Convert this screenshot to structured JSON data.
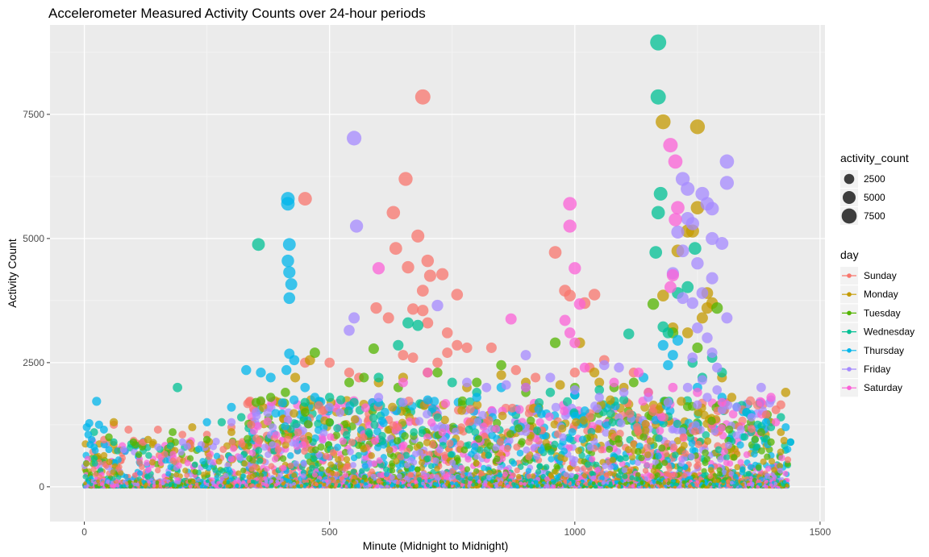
{
  "chart_data": {
    "type": "scatter",
    "title": "Accelerometer Measured Activity Counts over 24-hour periods",
    "xlabel": "Minute (Midnight to Midnight)",
    "ylabel": "Activity Count",
    "xlim": [
      -70,
      1510
    ],
    "ylim": [
      -700,
      9300
    ],
    "x_ticks": [
      0,
      500,
      1000,
      1500
    ],
    "x_tick_labels": [
      "0",
      "500",
      "1000",
      "1500"
    ],
    "y_ticks": [
      0,
      2500,
      5000,
      7500
    ],
    "y_tick_labels": [
      "0",
      "2500",
      "5000",
      "7500"
    ],
    "grid": true,
    "legend_position": "right",
    "size_legend": {
      "title": "activity_count",
      "entries": [
        {
          "label": "2500",
          "value": 2500
        },
        {
          "label": "5000",
          "value": 5000
        },
        {
          "label": "7500",
          "value": 7500
        }
      ]
    },
    "color_legend": {
      "title": "day",
      "entries": [
        {
          "label": "Sunday",
          "color": "#F8766D"
        },
        {
          "label": "Monday",
          "color": "#C49A00"
        },
        {
          "label": "Tuesday",
          "color": "#53B400"
        },
        {
          "label": "Wednesday",
          "color": "#00C094"
        },
        {
          "label": "Thursday",
          "color": "#00B6EB"
        },
        {
          "label": "Friday",
          "color": "#A58AFF"
        },
        {
          "label": "Saturday",
          "color": "#FB61D7"
        }
      ]
    },
    "series": [
      {
        "name": "Sunday",
        "color": "#F8766D",
        "points": [
          [
            450,
            5800
          ],
          [
            690,
            7850
          ],
          [
            655,
            6200
          ],
          [
            630,
            5520
          ],
          [
            680,
            5050
          ],
          [
            635,
            4800
          ],
          [
            660,
            4420
          ],
          [
            700,
            4550
          ],
          [
            705,
            4250
          ],
          [
            730,
            4280
          ],
          [
            690,
            3950
          ],
          [
            595,
            3600
          ],
          [
            670,
            3580
          ],
          [
            690,
            3550
          ],
          [
            760,
            3870
          ],
          [
            620,
            3400
          ],
          [
            700,
            3300
          ],
          [
            740,
            3100
          ],
          [
            760,
            2850
          ],
          [
            780,
            2800
          ],
          [
            830,
            2800
          ],
          [
            740,
            2700
          ],
          [
            650,
            2650
          ],
          [
            670,
            2600
          ],
          [
            720,
            2500
          ],
          [
            960,
            4720
          ],
          [
            980,
            3950
          ],
          [
            990,
            3850
          ],
          [
            1040,
            3870
          ],
          [
            1020,
            3700
          ],
          [
            1060,
            2550
          ],
          [
            1030,
            2400
          ],
          [
            1000,
            2300
          ],
          [
            60,
            1250
          ],
          [
            90,
            1150
          ],
          [
            150,
            1150
          ],
          [
            200,
            1050
          ],
          [
            250,
            1050
          ],
          [
            120,
            900
          ],
          [
            40,
            950
          ],
          [
            300,
            1200
          ],
          [
            340,
            1250
          ],
          [
            1420,
            1650
          ],
          [
            1410,
            1550
          ],
          [
            1390,
            1450
          ],
          [
            500,
            2500
          ],
          [
            450,
            2500
          ],
          [
            540,
            2300
          ],
          [
            560,
            2200
          ],
          [
            880,
            2350
          ],
          [
            920,
            2200
          ],
          [
            1120,
            2300
          ]
        ]
      },
      {
        "name": "Monday",
        "color": "#C49A00",
        "points": [
          [
            1180,
            7350
          ],
          [
            1250,
            7250
          ],
          [
            1250,
            5620
          ],
          [
            1240,
            5150
          ],
          [
            1230,
            5150
          ],
          [
            1210,
            4750
          ],
          [
            1270,
            3900
          ],
          [
            1280,
            3700
          ],
          [
            1270,
            3600
          ],
          [
            1180,
            3850
          ],
          [
            1260,
            3400
          ],
          [
            1200,
            3200
          ],
          [
            1230,
            3100
          ],
          [
            1010,
            2900
          ],
          [
            1040,
            2300
          ],
          [
            850,
            2250
          ],
          [
            700,
            2300
          ],
          [
            650,
            2200
          ],
          [
            600,
            2100
          ],
          [
            460,
            2550
          ],
          [
            430,
            2200
          ],
          [
            1430,
            1900
          ],
          [
            1400,
            1300
          ],
          [
            1420,
            1100
          ],
          [
            60,
            1300
          ],
          [
            220,
            1200
          ],
          [
            130,
            950
          ],
          [
            300,
            1100
          ],
          [
            900,
            2100
          ],
          [
            780,
            2000
          ],
          [
            1050,
            2100
          ],
          [
            1100,
            2000
          ],
          [
            1300,
            2200
          ],
          [
            1320,
            1800
          ],
          [
            1150,
            1900
          ],
          [
            970,
            2050
          ]
        ]
      },
      {
        "name": "Tuesday",
        "color": "#53B400",
        "points": [
          [
            470,
            2700
          ],
          [
            570,
            2200
          ],
          [
            590,
            2780
          ],
          [
            960,
            2900
          ],
          [
            1160,
            3680
          ],
          [
            1200,
            3100
          ],
          [
            1290,
            3600
          ],
          [
            1250,
            2800
          ],
          [
            850,
            2450
          ],
          [
            720,
            2300
          ],
          [
            640,
            2000
          ],
          [
            540,
            2100
          ],
          [
            410,
            1900
          ],
          [
            380,
            1800
          ],
          [
            350,
            1700
          ],
          [
            1120,
            2100
          ],
          [
            1080,
            2000
          ],
          [
            1000,
            2000
          ],
          [
            180,
            1100
          ],
          [
            100,
            900
          ],
          [
            50,
            1000
          ],
          [
            250,
            950
          ],
          [
            1380,
            1100
          ],
          [
            1400,
            900
          ],
          [
            800,
            2100
          ],
          [
            900,
            1900
          ],
          [
            450,
            1500
          ],
          [
            500,
            1300
          ]
        ]
      },
      {
        "name": "Wednesday",
        "color": "#00C094",
        "points": [
          [
            1170,
            8950
          ],
          [
            1170,
            7850
          ],
          [
            1175,
            5900
          ],
          [
            1170,
            5520
          ],
          [
            1165,
            4720
          ],
          [
            1245,
            4800
          ],
          [
            1230,
            4020
          ],
          [
            1210,
            3900
          ],
          [
            1180,
            3220
          ],
          [
            1190,
            3100
          ],
          [
            1110,
            3080
          ],
          [
            355,
            4880
          ],
          [
            190,
            2000
          ],
          [
            660,
            3300
          ],
          [
            680,
            3250
          ],
          [
            640,
            2850
          ],
          [
            600,
            2200
          ],
          [
            750,
            2100
          ],
          [
            800,
            1900
          ],
          [
            1280,
            2600
          ],
          [
            1300,
            2300
          ],
          [
            1240,
            2500
          ],
          [
            1260,
            2200
          ],
          [
            900,
            2000
          ],
          [
            950,
            1900
          ],
          [
            1050,
            1950
          ],
          [
            1000,
            1850
          ],
          [
            1100,
            1750
          ],
          [
            500,
            1800
          ],
          [
            450,
            1700
          ],
          [
            550,
            1700
          ],
          [
            1350,
            1500
          ],
          [
            1400,
            1200
          ],
          [
            320,
            1400
          ],
          [
            280,
            1300
          ],
          [
            1440,
            900
          ],
          [
            1420,
            1400
          ],
          [
            20,
            1100
          ],
          [
            60,
            900
          ]
        ]
      },
      {
        "name": "Thursday",
        "color": "#00B6EB",
        "points": [
          [
            415,
            5800
          ],
          [
            415,
            5700
          ],
          [
            418,
            4880
          ],
          [
            415,
            4550
          ],
          [
            418,
            4320
          ],
          [
            422,
            4080
          ],
          [
            418,
            3800
          ],
          [
            418,
            2680
          ],
          [
            428,
            2550
          ],
          [
            412,
            2350
          ],
          [
            330,
            2350
          ],
          [
            360,
            2300
          ],
          [
            380,
            2200
          ],
          [
            25,
            1720
          ],
          [
            10,
            1280
          ],
          [
            30,
            1250
          ],
          [
            5,
            1200
          ],
          [
            40,
            1150
          ],
          [
            8,
            1050
          ],
          [
            15,
            950
          ],
          [
            12,
            850
          ],
          [
            20,
            800
          ],
          [
            50,
            750
          ],
          [
            450,
            2000
          ],
          [
            470,
            1800
          ],
          [
            1180,
            2850
          ],
          [
            1200,
            2650
          ],
          [
            1210,
            2950
          ],
          [
            1190,
            2450
          ],
          [
            1140,
            2200
          ],
          [
            1250,
            2000
          ],
          [
            1300,
            1800
          ],
          [
            1000,
            1850
          ],
          [
            800,
            1800
          ],
          [
            700,
            1750
          ],
          [
            600,
            1700
          ],
          [
            1350,
            1500
          ],
          [
            1390,
            1300
          ],
          [
            1430,
            1200
          ],
          [
            1440,
            900
          ],
          [
            300,
            1600
          ],
          [
            250,
            1300
          ],
          [
            850,
            2000
          ]
        ]
      },
      {
        "name": "Friday",
        "color": "#A58AFF",
        "points": [
          [
            550,
            7020
          ],
          [
            555,
            5250
          ],
          [
            1310,
            6550
          ],
          [
            1310,
            6120
          ],
          [
            1220,
            6200
          ],
          [
            1230,
            6000
          ],
          [
            1260,
            5900
          ],
          [
            1280,
            5600
          ],
          [
            1270,
            5700
          ],
          [
            1230,
            5400
          ],
          [
            1210,
            5130
          ],
          [
            1240,
            5300
          ],
          [
            1280,
            5000
          ],
          [
            1300,
            4900
          ],
          [
            1220,
            4750
          ],
          [
            1250,
            4500
          ],
          [
            1200,
            4300
          ],
          [
            1280,
            4200
          ],
          [
            1260,
            3900
          ],
          [
            1220,
            3800
          ],
          [
            1240,
            3700
          ],
          [
            1310,
            3400
          ],
          [
            1250,
            3200
          ],
          [
            1270,
            3000
          ],
          [
            1280,
            2700
          ],
          [
            1240,
            2600
          ],
          [
            1290,
            2400
          ],
          [
            550,
            3400
          ],
          [
            540,
            3150
          ],
          [
            720,
            3650
          ],
          [
            900,
            2650
          ],
          [
            1060,
            2450
          ],
          [
            1090,
            2400
          ],
          [
            1290,
            1950
          ],
          [
            1270,
            1800
          ],
          [
            1250,
            1650
          ],
          [
            1300,
            1550
          ],
          [
            1330,
            1600
          ],
          [
            1360,
            1400
          ],
          [
            1380,
            2000
          ],
          [
            1230,
            2000
          ],
          [
            1260,
            2150
          ],
          [
            780,
            2100
          ],
          [
            820,
            2000
          ],
          [
            860,
            2050
          ],
          [
            950,
            2200
          ],
          [
            1000,
            1950
          ],
          [
            1050,
            1800
          ],
          [
            1100,
            1900
          ],
          [
            1150,
            1800
          ],
          [
            1190,
            1700
          ],
          [
            350,
            1500
          ],
          [
            300,
            1300
          ],
          [
            600,
            1800
          ],
          [
            650,
            1700
          ],
          [
            500,
            1600
          ],
          [
            200,
            900
          ],
          [
            150,
            800
          ],
          [
            80,
            750
          ]
        ]
      },
      {
        "name": "Saturday",
        "color": "#FB61D7",
        "points": [
          [
            1195,
            6880
          ],
          [
            1205,
            6550
          ],
          [
            1210,
            5620
          ],
          [
            1205,
            5380
          ],
          [
            1200,
            4260
          ],
          [
            1195,
            4020
          ],
          [
            990,
            5700
          ],
          [
            990,
            5250
          ],
          [
            1000,
            4400
          ],
          [
            1010,
            3680
          ],
          [
            600,
            4400
          ],
          [
            980,
            3350
          ],
          [
            990,
            3100
          ],
          [
            870,
            3380
          ],
          [
            1000,
            2900
          ],
          [
            1020,
            2400
          ],
          [
            1130,
            2300
          ],
          [
            1200,
            2000
          ],
          [
            1150,
            1900
          ],
          [
            1400,
            1800
          ],
          [
            1380,
            1700
          ],
          [
            1410,
            1300
          ],
          [
            700,
            2300
          ],
          [
            650,
            2100
          ],
          [
            900,
            2000
          ],
          [
            1080,
            2100
          ],
          [
            1250,
            1900
          ],
          [
            1300,
            1700
          ]
        ]
      }
    ]
  }
}
